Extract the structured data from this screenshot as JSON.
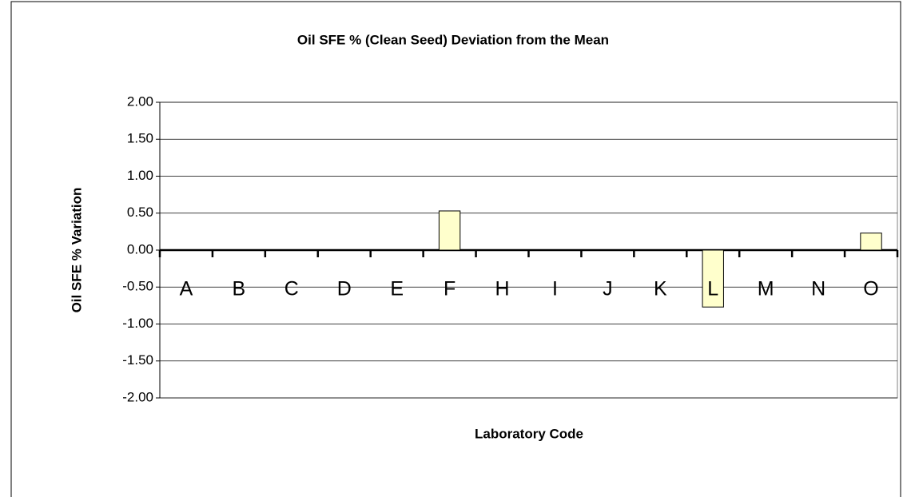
{
  "chart_data": {
    "type": "bar",
    "title": "Oil SFE % (Clean Seed) Deviation from the Mean",
    "x_label": "Laboratory Code",
    "y_label": "Oil SFE % Variation",
    "categories": [
      "A",
      "B",
      "C",
      "D",
      "E",
      "F",
      "H",
      "I",
      "J",
      "K",
      "L",
      "M",
      "N",
      "O"
    ],
    "values": [
      0,
      0,
      0,
      0,
      0,
      0.53,
      0,
      0,
      0,
      0,
      -0.77,
      0,
      0,
      0.23
    ],
    "color": "#ffffcc",
    "ylim": [
      -2,
      2
    ],
    "yticks": [
      {
        "value": -2,
        "label": "-2.00"
      },
      {
        "value": -1.5,
        "label": "-1.50"
      },
      {
        "value": -1,
        "label": "-1.00"
      },
      {
        "value": -0.5,
        "label": "-0.50"
      },
      {
        "value": 0,
        "label": "0.00"
      },
      {
        "value": 0.5,
        "label": "0.50"
      },
      {
        "value": 1,
        "label": "1.00"
      },
      {
        "value": 1.5,
        "label": "1.50"
      },
      {
        "value": 2,
        "label": "2.00"
      }
    ],
    "grid": true
  }
}
